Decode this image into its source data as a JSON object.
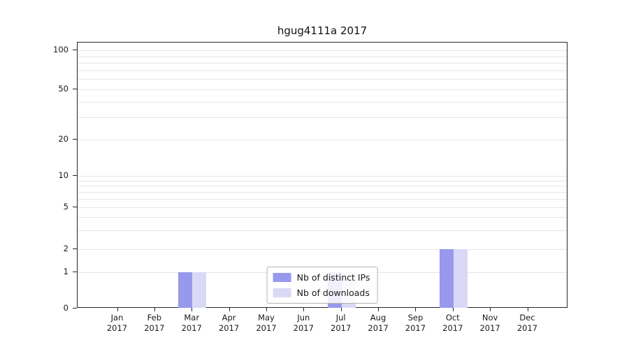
{
  "title": "hgug4111a 2017",
  "chart_data": {
    "type": "bar",
    "title": "hgug4111a 2017",
    "categories": [
      "Jan",
      "Feb",
      "Mar",
      "Apr",
      "May",
      "Jun",
      "Jul",
      "Aug",
      "Sep",
      "Oct",
      "Nov",
      "Dec"
    ],
    "year": "2017",
    "series": [
      {
        "name": "Nb of distinct IPs",
        "color": "#9898ec",
        "values": [
          0,
          0,
          1,
          0,
          0,
          0,
          1,
          0,
          0,
          2,
          0,
          0
        ]
      },
      {
        "name": "Nb of downloads",
        "color": "#d9d9f6",
        "values": [
          0,
          0,
          1,
          0,
          0,
          0,
          1,
          0,
          0,
          2,
          0,
          0
        ]
      }
    ],
    "yticks": [
      0,
      1,
      2,
      5,
      10,
      20,
      50,
      100
    ],
    "ylim": [
      0,
      100
    ],
    "xlabel": "",
    "ylabel": "",
    "grid": "horizontal",
    "scale": "log-like",
    "legend_position": "bottom-center-inside"
  }
}
